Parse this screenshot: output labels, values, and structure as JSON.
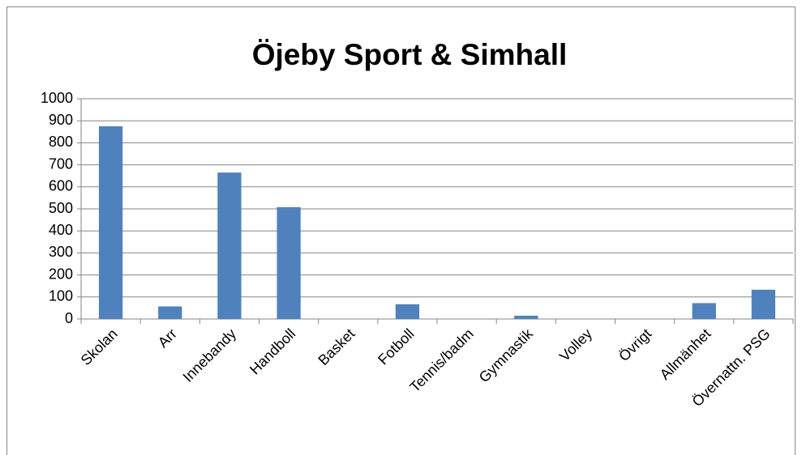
{
  "chart_data": {
    "type": "bar",
    "title": "Öjeby Sport & Simhall",
    "categories": [
      "Skolan",
      "Arr",
      "Innebandy",
      "Handboll",
      "Basket",
      "Fotboll",
      "Tennis/badm",
      "Gymnastik",
      "Volley",
      "Övrigt",
      "Allmänhet",
      "Övernattn. PSG"
    ],
    "values": [
      875,
      57,
      665,
      508,
      0,
      67,
      0,
      15,
      0,
      0,
      72,
      133
    ],
    "color": "#4f81bd",
    "ylim": [
      0,
      1000
    ],
    "yticks": [
      0,
      100,
      200,
      300,
      400,
      500,
      600,
      700,
      800,
      900,
      1000
    ],
    "grid": true
  }
}
